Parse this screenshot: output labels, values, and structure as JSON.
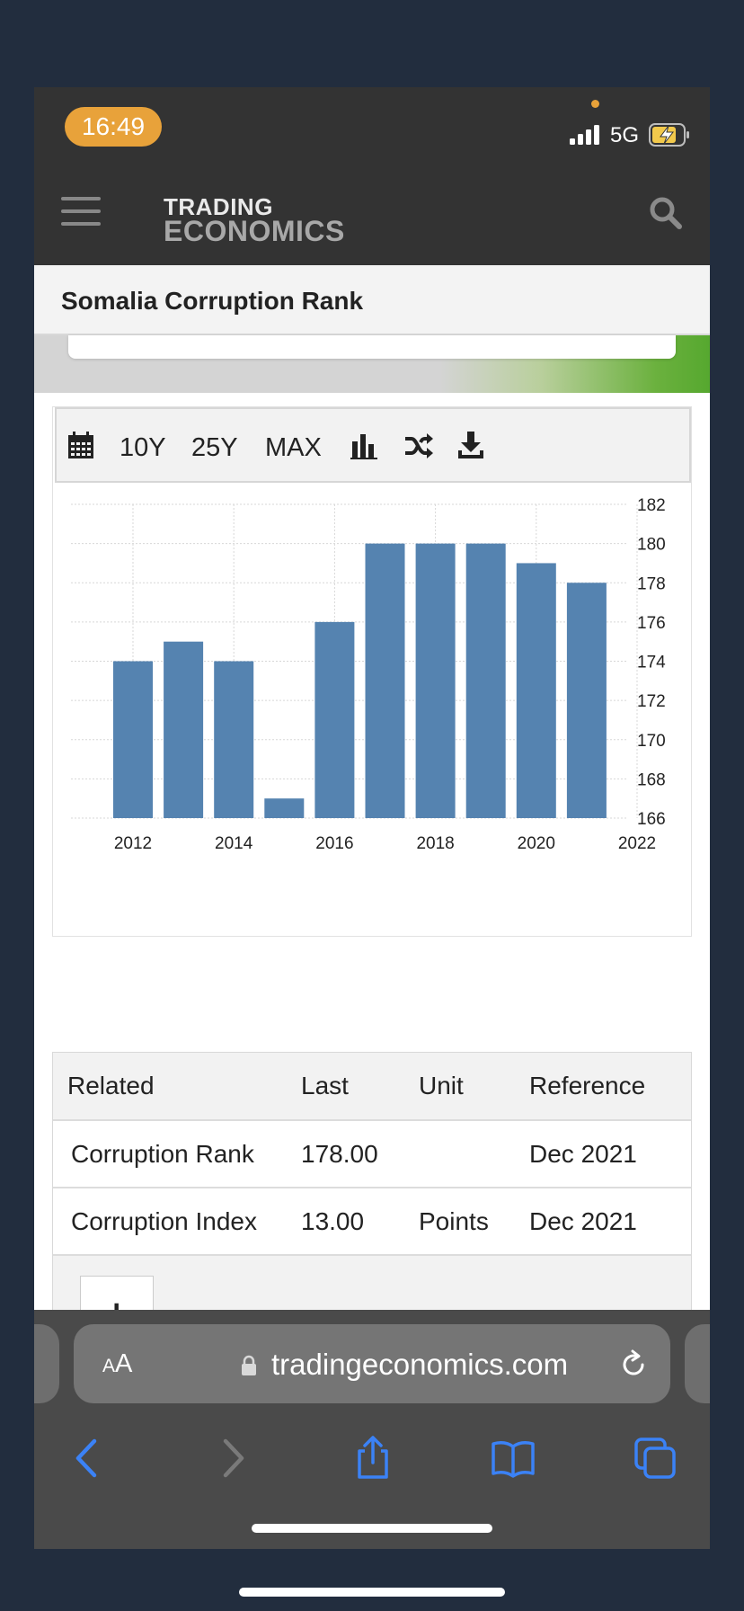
{
  "status": {
    "time": "16:49",
    "network": "5G"
  },
  "header": {
    "logo_line1": "TRADING",
    "logo_line2": "ECONOMICS",
    "page_title": "Somalia Corruption Rank"
  },
  "toolbar": {
    "range_10y": "10Y",
    "range_25y": "25Y",
    "range_max": "MAX"
  },
  "chart_data": {
    "type": "bar",
    "title": "",
    "xlabel": "",
    "ylabel": "",
    "categories": [
      "2012",
      "2013",
      "2014",
      "2015",
      "2016",
      "2017",
      "2018",
      "2019",
      "2020",
      "2021"
    ],
    "values": [
      174,
      175,
      174,
      167,
      176,
      180,
      180,
      180,
      179,
      178
    ],
    "ylim": [
      166,
      182
    ],
    "yticks": [
      "182",
      "180",
      "178",
      "176",
      "174",
      "172",
      "170",
      "168",
      "166"
    ],
    "xticks": [
      "2012",
      "2014",
      "2016",
      "2018",
      "2020",
      "2022"
    ],
    "bar_color": "#5583b0",
    "grid": true,
    "y_axis_side": "right"
  },
  "related": {
    "headers": [
      "Related",
      "Last",
      "Unit",
      "Reference"
    ],
    "rows": [
      [
        "Corruption Rank",
        "178.00",
        "",
        "Dec 2021"
      ],
      [
        "Corruption Index",
        "13.00",
        "Points",
        "Dec 2021"
      ]
    ],
    "more_label": "+"
  },
  "browser": {
    "aa_small": "A",
    "aa_large": "A",
    "url": "tradingeconomics.com"
  },
  "colors": {
    "accent": "#e8a23a",
    "header_bg": "#333333",
    "ios_blue": "#3b82f6"
  }
}
